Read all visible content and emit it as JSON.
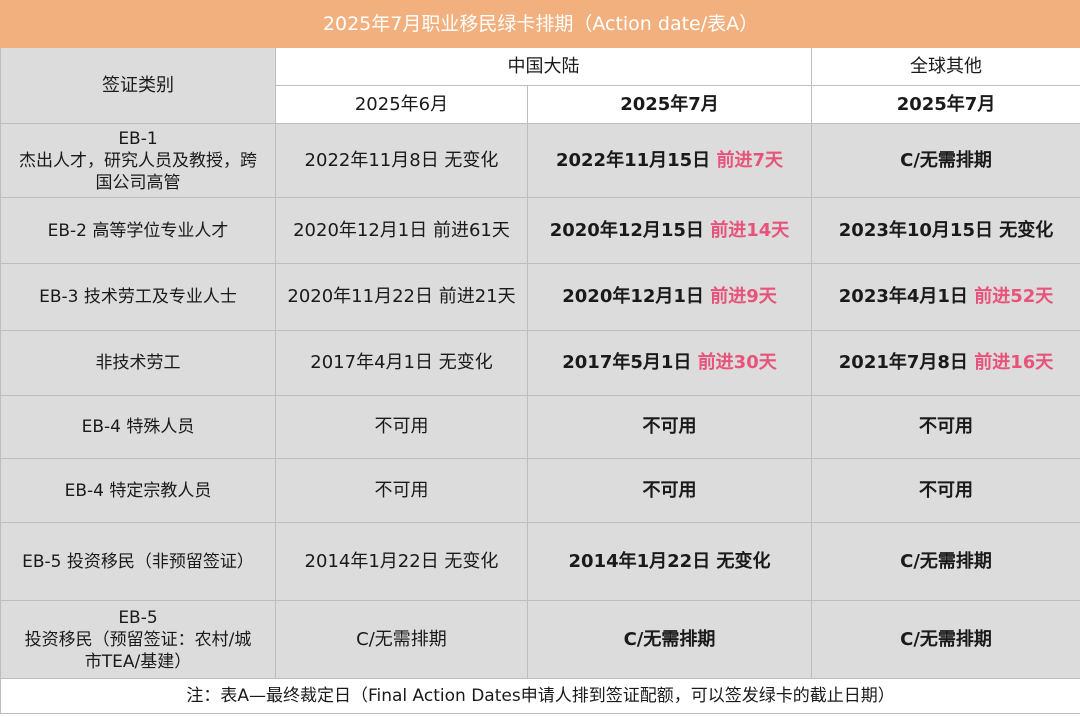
{
  "title": "2025年7月职业移民绿卡排期（Action date/表A）",
  "headers": {
    "category": "签证类别",
    "china": "中国大陆",
    "others": "全球其他",
    "china_june": "2025年6月",
    "china_july": "2025年7月",
    "others_july": "2025年7月"
  },
  "rows": [
    {
      "cat_lines": [
        "EB-1",
        "杰出人才，研究人员及教授，跨",
        "国公司高管"
      ],
      "june": "2022年11月8日 无变化",
      "july_date": "2022年11月15日",
      "july_change": "前进7天",
      "other_date": "C/无需排期",
      "other_change": ""
    },
    {
      "cat_lines": [
        "EB-2 高等学位专业人才"
      ],
      "june": "2020年12月1日 前进61天",
      "july_date": "2020年12月15日",
      "july_change": "前进14天",
      "other_date": "2023年10月15日 无变化",
      "other_change": ""
    },
    {
      "cat_lines": [
        "EB-3 技术劳工及专业人士"
      ],
      "june": "2020年11月22日 前进21天",
      "july_date": "2020年12月1日",
      "july_change": "前进9天",
      "other_date": "2023年4月1日",
      "other_change": "前进52天"
    },
    {
      "cat_lines": [
        "非技术劳工"
      ],
      "june": "2017年4月1日 无变化",
      "july_date": "2017年5月1日",
      "july_change": "前进30天",
      "other_date": "2021年7月8日",
      "other_change": "前进16天"
    },
    {
      "cat_lines": [
        "EB-4 特殊人员"
      ],
      "june": "不可用",
      "july_date": "不可用",
      "july_change": "",
      "other_date": "不可用",
      "other_change": ""
    },
    {
      "cat_lines": [
        "EB-4 特定宗教人员"
      ],
      "june": "不可用",
      "july_date": "不可用",
      "july_change": "",
      "other_date": "不可用",
      "other_change": ""
    },
    {
      "cat_lines": [
        "EB-5 投资移民（非预留签证）"
      ],
      "june": "2014年1月22日 无变化",
      "july_date": "2014年1月22日 无变化",
      "july_change": "",
      "other_date": "C/无需排期",
      "other_change": ""
    },
    {
      "cat_lines": [
        "EB-5",
        "投资移民（预留签证：农村/城",
        "市TEA/基建）"
      ],
      "june": "C/无需排期",
      "july_date": "C/无需排期",
      "july_change": "",
      "other_date": "C/无需排期",
      "other_change": ""
    }
  ],
  "note": "注：表A—最终裁定日（Final Action Dates申请人排到签证配额，可以签发绿卡的截止日期）"
}
